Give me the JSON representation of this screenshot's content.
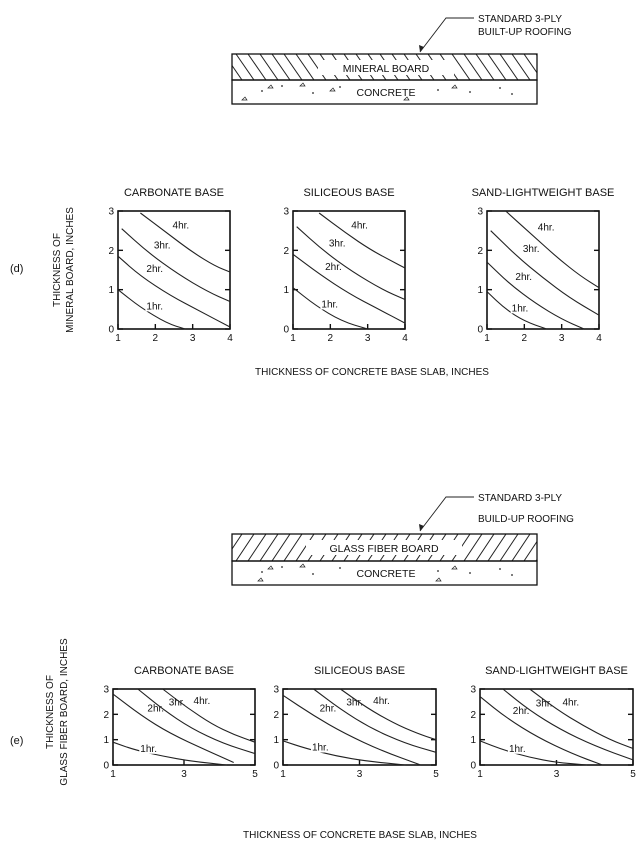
{
  "panels": [
    {
      "id": "d",
      "label": "(d)",
      "ylabel_lines": [
        "THICKNESS OF",
        "MINERAL BOARD, INCHES"
      ],
      "xlabel": "THICKNESS OF CONCRETE BASE SLAB, INCHES",
      "diagram": {
        "layer_label": "MINERAL BOARD",
        "base_label": "CONCRETE",
        "callout_lines": [
          "STANDARD 3-PLY",
          "BUILT-UP ROOFING"
        ],
        "hatch_style": "backslash"
      }
    },
    {
      "id": "e",
      "label": "(e)",
      "ylabel_lines": [
        "THICKNESS OF",
        "GLASS FIBER BOARD, INCHES"
      ],
      "xlabel": "THICKNESS OF CONCRETE BASE SLAB, INCHES",
      "diagram": {
        "layer_label": "GLASS FIBER BOARD",
        "base_label": "CONCRETE",
        "callout_lines": [
          "STANDARD 3-PLY",
          "BUILD-UP ROOFING"
        ],
        "hatch_style": "slash"
      }
    }
  ],
  "chart_data": [
    {
      "panel": "d",
      "type": "line",
      "title": "CARBONATE BASE",
      "xlim": [
        1,
        4
      ],
      "ylim": [
        0,
        3
      ],
      "xticks": [
        1,
        2,
        3,
        4
      ],
      "yticks": [
        0,
        1,
        2,
        3
      ],
      "series": [
        {
          "name": "1hr.",
          "x": [
            1.0,
            1.6,
            2.3,
            2.8
          ],
          "y": [
            1.0,
            0.55,
            0.15,
            0.0
          ]
        },
        {
          "name": "2hr.",
          "x": [
            1.0,
            1.6,
            2.4,
            3.2,
            4.0
          ],
          "y": [
            1.85,
            1.35,
            0.85,
            0.45,
            0.05
          ]
        },
        {
          "name": "3hr.",
          "x": [
            1.1,
            1.8,
            2.6,
            3.4,
            4.0
          ],
          "y": [
            2.55,
            1.95,
            1.4,
            0.95,
            0.7
          ]
        },
        {
          "name": "4hr.",
          "x": [
            1.6,
            2.3,
            3.0,
            3.6,
            4.0
          ],
          "y": [
            2.95,
            2.45,
            1.95,
            1.6,
            1.45
          ]
        }
      ]
    },
    {
      "panel": "d",
      "type": "line",
      "title": "SILICEOUS BASE",
      "xlim": [
        1,
        4
      ],
      "ylim": [
        0,
        3
      ],
      "xticks": [
        1,
        2,
        3,
        4
      ],
      "yticks": [
        0,
        1,
        2,
        3
      ],
      "series": [
        {
          "name": "1hr.",
          "x": [
            1.0,
            1.6,
            2.3,
            3.0
          ],
          "y": [
            1.05,
            0.6,
            0.2,
            0.0
          ]
        },
        {
          "name": "2hr.",
          "x": [
            1.0,
            1.7,
            2.5,
            3.3,
            4.0
          ],
          "y": [
            1.9,
            1.4,
            0.9,
            0.5,
            0.15
          ]
        },
        {
          "name": "3hr.",
          "x": [
            1.1,
            1.8,
            2.6,
            3.4,
            4.0
          ],
          "y": [
            2.6,
            2.0,
            1.45,
            1.0,
            0.75
          ]
        },
        {
          "name": "4hr.",
          "x": [
            1.7,
            2.4,
            3.1,
            3.7,
            4.0
          ],
          "y": [
            2.95,
            2.45,
            2.0,
            1.7,
            1.55
          ]
        }
      ]
    },
    {
      "panel": "d",
      "type": "line",
      "title": "SAND-LIGHTWEIGHT BASE",
      "xlim": [
        1,
        4
      ],
      "ylim": [
        0,
        3
      ],
      "xticks": [
        1,
        2,
        3,
        4
      ],
      "yticks": [
        0,
        1,
        2,
        3
      ],
      "series": [
        {
          "name": "1hr.",
          "x": [
            1.0,
            1.5,
            2.0,
            2.6
          ],
          "y": [
            0.95,
            0.5,
            0.2,
            0.0
          ]
        },
        {
          "name": "2hr.",
          "x": [
            1.0,
            1.6,
            2.3,
            3.0,
            3.6
          ],
          "y": [
            1.7,
            1.15,
            0.65,
            0.25,
            0.0
          ]
        },
        {
          "name": "3hr.",
          "x": [
            1.1,
            1.8,
            2.5,
            3.2,
            4.0
          ],
          "y": [
            2.5,
            1.85,
            1.3,
            0.8,
            0.35
          ]
        },
        {
          "name": "4hr.",
          "x": [
            1.5,
            2.2,
            2.9,
            3.5,
            4.0
          ],
          "y": [
            3.0,
            2.4,
            1.8,
            1.35,
            1.05
          ]
        }
      ]
    },
    {
      "panel": "e",
      "type": "line",
      "title": "CARBONATE BASE",
      "xlim": [
        1,
        5
      ],
      "ylim": [
        0,
        3
      ],
      "xticks": [
        1,
        3,
        5
      ],
      "yticks": [
        0,
        1,
        2,
        3
      ],
      "series": [
        {
          "name": "1hr.",
          "x": [
            1.0,
            1.6,
            2.4,
            3.2,
            4.2
          ],
          "y": [
            0.9,
            0.6,
            0.35,
            0.15,
            0.0
          ]
        },
        {
          "name": "2hr.",
          "x": [
            1.0,
            1.8,
            2.6,
            3.6,
            4.4
          ],
          "y": [
            2.8,
            1.95,
            1.25,
            0.6,
            0.1
          ]
        },
        {
          "name": "3hr.",
          "x": [
            1.7,
            2.4,
            3.2,
            4.1,
            5.0
          ],
          "y": [
            3.0,
            2.2,
            1.45,
            0.85,
            0.45
          ]
        },
        {
          "name": "4hr.",
          "x": [
            2.4,
            3.1,
            3.8,
            4.4,
            5.0
          ],
          "y": [
            3.0,
            2.25,
            1.6,
            1.2,
            0.9
          ]
        }
      ]
    },
    {
      "panel": "e",
      "type": "line",
      "title": "SILICEOUS BASE",
      "xlim": [
        1,
        5
      ],
      "ylim": [
        0,
        3
      ],
      "xticks": [
        1,
        3,
        5
      ],
      "yticks": [
        0,
        1,
        2,
        3
      ],
      "series": [
        {
          "name": "1hr.",
          "x": [
            1.0,
            1.6,
            2.4,
            3.2,
            4.2
          ],
          "y": [
            0.95,
            0.65,
            0.35,
            0.15,
            0.0
          ]
        },
        {
          "name": "2hr.",
          "x": [
            1.0,
            1.8,
            2.6,
            3.6,
            4.6
          ],
          "y": [
            2.75,
            1.95,
            1.25,
            0.55,
            0.0
          ]
        },
        {
          "name": "3hr.",
          "x": [
            1.8,
            2.5,
            3.3,
            4.2,
            5.0
          ],
          "y": [
            3.0,
            2.2,
            1.45,
            0.85,
            0.5
          ]
        },
        {
          "name": "4hr.",
          "x": [
            2.5,
            3.2,
            3.9,
            4.5,
            5.0
          ],
          "y": [
            3.0,
            2.25,
            1.65,
            1.25,
            1.0
          ]
        }
      ]
    },
    {
      "panel": "e",
      "type": "line",
      "title": "SAND-LIGHTWEIGHT BASE",
      "xlim": [
        1,
        5
      ],
      "ylim": [
        0,
        3
      ],
      "xticks": [
        1,
        3,
        5
      ],
      "yticks": [
        0,
        1,
        2,
        3
      ],
      "series": [
        {
          "name": "1hr.",
          "x": [
            1.0,
            1.6,
            2.3,
            3.0,
            3.8
          ],
          "y": [
            0.95,
            0.6,
            0.3,
            0.1,
            0.0
          ]
        },
        {
          "name": "2hr.",
          "x": [
            1.0,
            1.7,
            2.5,
            3.4,
            4.2
          ],
          "y": [
            2.7,
            1.85,
            1.1,
            0.45,
            0.0
          ]
        },
        {
          "name": "3hr.",
          "x": [
            1.6,
            2.3,
            3.1,
            4.0,
            5.0
          ],
          "y": [
            3.0,
            2.15,
            1.4,
            0.75,
            0.2
          ]
        },
        {
          "name": "4hr.",
          "x": [
            2.3,
            3.0,
            3.7,
            4.4,
            5.0
          ],
          "y": [
            3.0,
            2.2,
            1.55,
            1.0,
            0.65
          ]
        }
      ]
    }
  ]
}
